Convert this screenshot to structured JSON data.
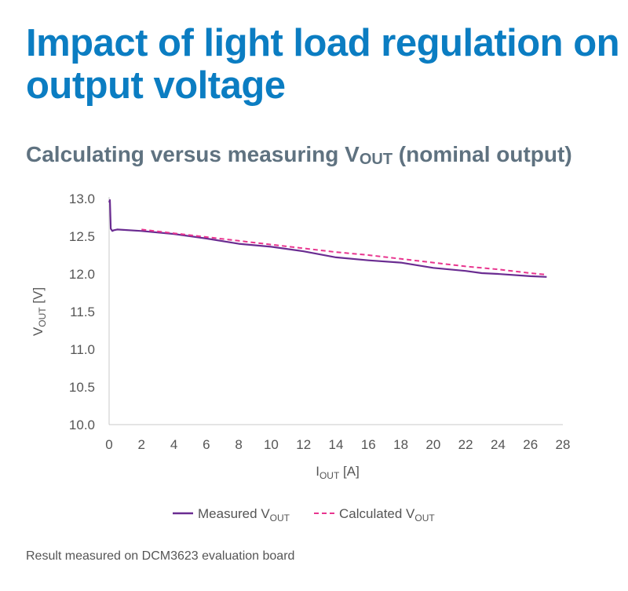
{
  "title": "Impact of light load regulation on output voltage",
  "subtitle": {
    "main": "Calculating versus measuring V",
    "sub": "OUT",
    "tail": " (nominal output)"
  },
  "footnote": "Result measured on DCM3623 evaluation board",
  "colors": {
    "title": "#0b7dc2",
    "subtitle": "#5f7280",
    "measured": "#6a2c91",
    "calculated": "#e8358f"
  },
  "chart_data": {
    "type": "line",
    "xlabel": {
      "main": "I",
      "sub": "OUT",
      "tail": " [A]"
    },
    "ylabel": {
      "main": "V",
      "sub": "OUT",
      "tail": " [V]"
    },
    "xlim": [
      0,
      28
    ],
    "ylim": [
      10.0,
      13.0
    ],
    "xticks": [
      "0",
      "2",
      "4",
      "6",
      "8",
      "10",
      "12",
      "14",
      "16",
      "18",
      "20",
      "22",
      "24",
      "26",
      "28"
    ],
    "yticks": [
      "10.0",
      "10.5",
      "11.0",
      "11.5",
      "12.0",
      "12.5",
      "13.0"
    ],
    "legend_position": "bottom",
    "grid": false,
    "series": [
      {
        "name": {
          "main": "Measured V",
          "sub": "OUT"
        },
        "style": "solid",
        "x": [
          0,
          0.05,
          0.1,
          0.2,
          0.3,
          0.5,
          2,
          4,
          6,
          8,
          10,
          12,
          14,
          16,
          18,
          20,
          22,
          23,
          24,
          26,
          27
        ],
        "y": [
          12.95,
          12.98,
          12.6,
          12.57,
          12.58,
          12.59,
          12.57,
          12.53,
          12.47,
          12.4,
          12.36,
          12.3,
          12.22,
          12.18,
          12.15,
          12.08,
          12.04,
          12.01,
          12.0,
          11.97,
          11.96
        ]
      },
      {
        "name": {
          "main": "Calculated V",
          "sub": "OUT"
        },
        "style": "dashed",
        "x": [
          2,
          4,
          6,
          8,
          10,
          12,
          14,
          16,
          18,
          20,
          22,
          24,
          26,
          27
        ],
        "y": [
          12.59,
          12.54,
          12.49,
          12.44,
          12.39,
          12.34,
          12.29,
          12.25,
          12.2,
          12.15,
          12.1,
          12.06,
          12.01,
          11.99
        ]
      }
    ]
  }
}
